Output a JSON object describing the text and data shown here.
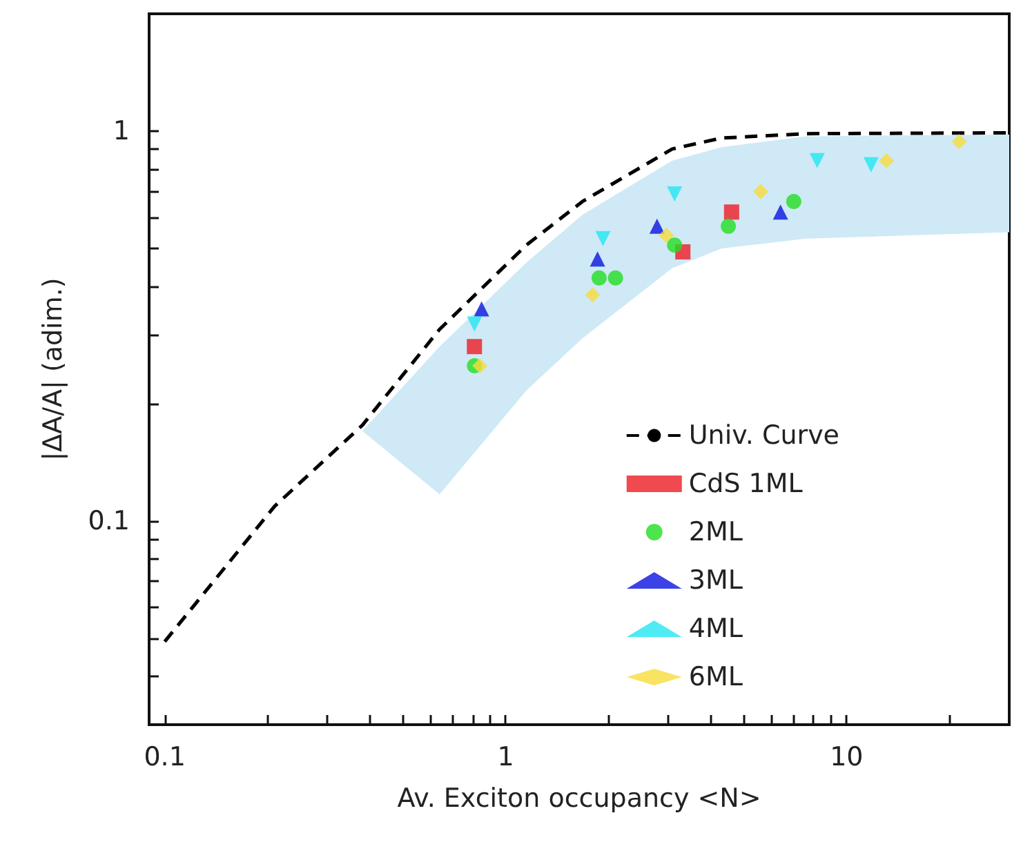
{
  "chart_data": {
    "type": "scatter",
    "xlabel": "Av. Exciton occupancy <N>",
    "ylabel": "|ΔA/A| (adim.)",
    "log": "xy",
    "xlim": [
      0.09,
      30
    ],
    "ylim": [
      0.03,
      2
    ],
    "xticks": [
      {
        "value": 0.1,
        "label": "0.1"
      },
      {
        "value": 0.2,
        "label": null
      },
      {
        "value": 0.3,
        "label": null
      },
      {
        "value": 0.4,
        "label": null
      },
      {
        "value": 0.5,
        "label": null
      },
      {
        "value": 0.6,
        "label": null
      },
      {
        "value": 0.7,
        "label": null
      },
      {
        "value": 0.8,
        "label": null
      },
      {
        "value": 0.9,
        "label": null
      },
      1,
      {
        "value": 2,
        "label": null
      },
      {
        "value": 3,
        "label": null
      },
      {
        "value": 4,
        "label": null
      },
      {
        "value": 5,
        "label": null
      },
      {
        "value": 6,
        "label": null
      },
      {
        "value": 7,
        "label": null
      },
      {
        "value": 8,
        "label": null
      },
      {
        "value": 9,
        "label": null
      },
      10,
      {
        "value": 20,
        "label": null
      }
    ],
    "yticks": [
      {
        "value": 0.04,
        "label": null
      },
      {
        "value": 0.05,
        "label": null
      },
      {
        "value": 0.06,
        "label": null
      },
      {
        "value": 0.07,
        "label": null
      },
      {
        "value": 0.08,
        "label": null
      },
      {
        "value": 0.09,
        "label": null
      },
      {
        "value": 0.1,
        "label": "0.1"
      },
      {
        "value": 0.2,
        "label": null
      },
      {
        "value": 0.3,
        "label": null
      },
      {
        "value": 0.4,
        "label": null
      },
      {
        "value": 0.5,
        "label": null
      },
      {
        "value": 0.6,
        "label": null
      },
      {
        "value": 0.7,
        "label": null
      },
      {
        "value": 0.8,
        "label": null
      },
      {
        "value": 0.9,
        "label": null
      },
      1
    ],
    "legend": "bottom right",
    "series": [
      {
        "type": "line",
        "name": "Univ. Curve",
        "color": "#000000",
        "line_style": "dashed",
        "marker": "none",
        "x": [
          0.1,
          0.21,
          0.38,
          0.64,
          1.15,
          1.68,
          3.08,
          4.3,
          7.6,
          30
        ],
        "values": [
          0.049,
          0.109,
          0.176,
          0.31,
          0.51,
          0.66,
          0.9,
          0.96,
          0.985,
          0.99
        ],
        "lower": [
          null,
          null,
          0.17,
          0.117,
          0.216,
          0.294,
          0.445,
          0.5,
          0.53,
          0.55
        ],
        "upper": [
          null,
          null,
          0.17,
          0.28,
          0.46,
          0.61,
          0.84,
          0.91,
          0.97,
          0.98
        ]
      },
      {
        "name": "CdS 1ML",
        "color": "#ee1c24",
        "marker": "square",
        "x": [
          0.81,
          3.31,
          4.6
        ],
        "values": [
          0.28,
          0.49,
          0.62
        ]
      },
      {
        "name": "2ML",
        "color": "#22dd22",
        "marker": "circle",
        "x": [
          0.81,
          1.88,
          2.1,
          3.13,
          4.5,
          7.0
        ],
        "values": [
          0.25,
          0.42,
          0.42,
          0.51,
          0.57,
          0.66
        ]
      },
      {
        "name": "3ML",
        "color": "#0a14e0",
        "marker": "triangle",
        "x": [
          0.85,
          1.86,
          2.78,
          6.4
        ],
        "values": [
          0.35,
          0.47,
          0.57,
          0.62
        ]
      },
      {
        "name": "4ML",
        "color": "#22e6f2",
        "marker": "triangle_down",
        "x": [
          0.81,
          1.93,
          3.13,
          8.2,
          11.8
        ],
        "values": [
          0.32,
          0.53,
          0.69,
          0.84,
          0.82
        ]
      },
      {
        "name": "6ML",
        "color": "#f6dc3c",
        "marker": "diamond",
        "x": [
          0.84,
          1.8,
          2.96,
          5.6,
          13.1,
          21.4
        ],
        "values": [
          0.25,
          0.38,
          0.54,
          0.7,
          0.84,
          0.94
        ]
      }
    ]
  }
}
